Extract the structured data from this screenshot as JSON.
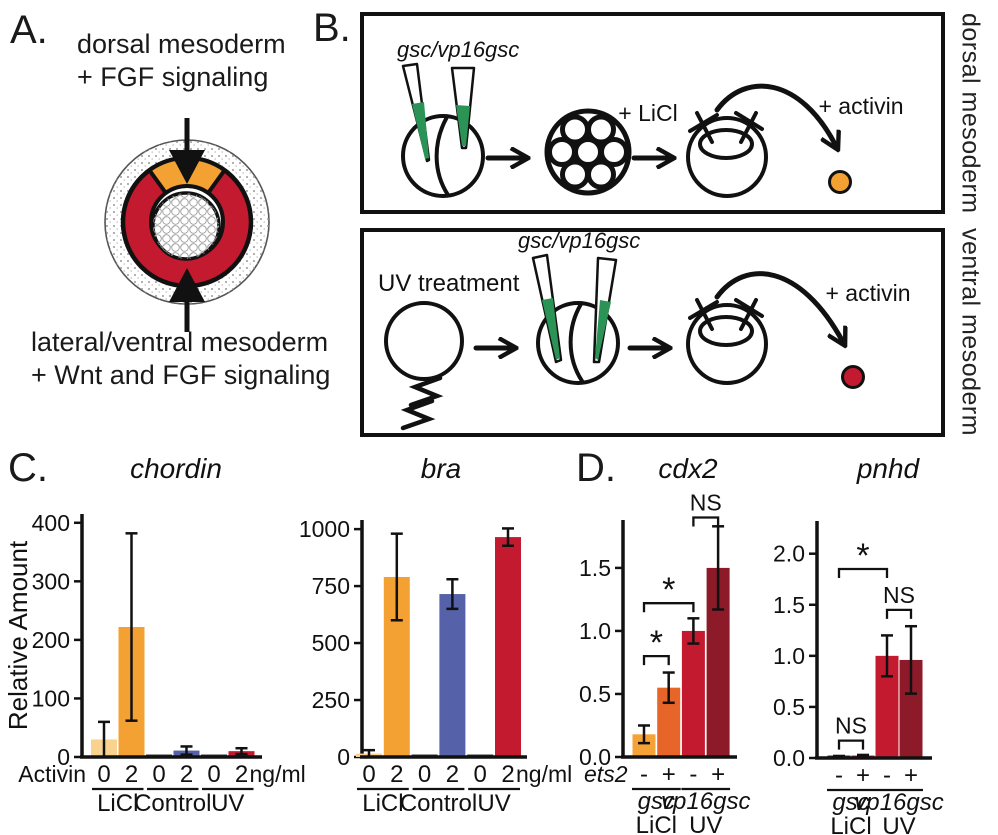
{
  "figure": {
    "panels": {
      "A": {
        "label": "A.",
        "top_caption": [
          "dorsal mesoderm",
          "+ FGF signaling"
        ],
        "bottom_caption": [
          "lateral/ventral mesoderm",
          "+ Wnt and FGF signaling"
        ],
        "colors": {
          "dorsal_wedge": "#F2A132",
          "ventral_ring": "#C41A30"
        }
      },
      "B": {
        "label": "B.",
        "dorsal_row": {
          "injection_label": "gsc/vp16gsc",
          "treatment_label": "+ LiCl",
          "activin_label": "+ activin",
          "side_label": "dorsal mesoderm",
          "explant_color": "#F2A132"
        },
        "ventral_row": {
          "uv_label": "UV treatment",
          "injection_label": "gsc/vp16gsc",
          "activin_label": "+ activin",
          "side_label": "ventral mesoderm",
          "explant_color": "#C41A30"
        },
        "pipette_color": "#2B9355"
      },
      "C": {
        "label": "C."
      },
      "D": {
        "label": "D."
      }
    }
  },
  "chart_data": [
    {
      "type": "bar",
      "title": "chordin",
      "ylabel": "Relative Amount",
      "ylim": [
        0,
        415
      ],
      "y_ticks": [
        0,
        100,
        200,
        300,
        400
      ],
      "y_tick_decimals": 0,
      "x_axis_prefix": "Activin",
      "prefix_italic": false,
      "x_axis_suffix": "ng/ml",
      "x_tick_labels": [
        "0",
        "2",
        "0",
        "2",
        "0",
        "2"
      ],
      "values": [
        30,
        222,
        2,
        11,
        2,
        10
      ],
      "errors": [
        30,
        160,
        0,
        7,
        0,
        5
      ],
      "colors": [
        "#F8D28E",
        "#F2A132",
        "#333333",
        "#5561A8",
        "#333333",
        "#C41A30"
      ],
      "groups": [
        {
          "label": "LiCl",
          "bars": [
            0,
            1
          ]
        },
        {
          "label": "Control",
          "bars": [
            2,
            3
          ]
        },
        {
          "label": "UV",
          "bars": [
            4,
            5
          ]
        }
      ],
      "brackets": []
    },
    {
      "type": "bar",
      "title": "bra",
      "ylabel": "",
      "ylim": [
        0,
        1040
      ],
      "y_ticks": [
        0,
        250,
        500,
        750,
        1000
      ],
      "y_tick_decimals": 0,
      "x_axis_prefix": "",
      "prefix_italic": false,
      "x_axis_suffix": "ng/ml",
      "x_tick_labels": [
        "0",
        "2",
        "0",
        "2",
        "0",
        "2"
      ],
      "values": [
        15,
        790,
        3,
        715,
        3,
        965
      ],
      "errors": [
        15,
        190,
        0,
        65,
        0,
        38
      ],
      "colors": [
        "#F8D28E",
        "#F2A132",
        "#333333",
        "#5561A8",
        "#333333",
        "#C41A30"
      ],
      "groups": [
        {
          "label": "LiCl",
          "bars": [
            0,
            1
          ]
        },
        {
          "label": "Control",
          "bars": [
            2,
            3
          ]
        },
        {
          "label": "UV",
          "bars": [
            4,
            5
          ]
        }
      ],
      "brackets": []
    },
    {
      "type": "bar",
      "title": "cdx2",
      "ylabel": "",
      "ylim": [
        0,
        1.88
      ],
      "y_ticks": [
        0,
        0.5,
        1,
        1.5
      ],
      "y_tick_decimals": 1,
      "x_axis_prefix": "ets2",
      "prefix_italic": true,
      "x_axis_suffix": "",
      "x_tick_labels": [
        "-",
        "+",
        "-",
        "+"
      ],
      "values": [
        0.18,
        0.55,
        1.0,
        1.5
      ],
      "errors": [
        0.07,
        0.12,
        0.1,
        0.33
      ],
      "colors": [
        "#F5A237",
        "#E8652A",
        "#C41A30",
        "#8C1A28"
      ],
      "groups": [
        {
          "label": "gsc",
          "label_italic": true,
          "sublabel": "LiCl",
          "bars": [
            0,
            1
          ]
        },
        {
          "label": "vp16gsc",
          "label_italic": true,
          "sublabel": "UV",
          "bars": [
            2,
            3
          ]
        }
      ],
      "brackets": [
        {
          "from": 0,
          "to": 1,
          "label": "*",
          "y": 0.8
        },
        {
          "from": 0,
          "to": 2,
          "label": "*",
          "y": 1.22
        },
        {
          "from": 2,
          "to": 3,
          "label": "NS",
          "y": 1.9
        }
      ]
    },
    {
      "type": "bar",
      "title": "pnhd",
      "ylabel": "",
      "ylim": [
        0,
        2.32
      ],
      "y_ticks": [
        0,
        0.5,
        1,
        1.5,
        2
      ],
      "y_tick_decimals": 1,
      "x_axis_prefix": "",
      "prefix_italic": false,
      "x_axis_suffix": "",
      "x_tick_labels": [
        "-",
        "+",
        "-",
        "+"
      ],
      "values": [
        0.01,
        0.02,
        1.0,
        0.96
      ],
      "errors": [
        0.01,
        0.01,
        0.2,
        0.33
      ],
      "colors": [
        "#333333",
        "#C42030",
        "#C41A30",
        "#8C1A28"
      ],
      "groups": [
        {
          "label": "gsc",
          "label_italic": true,
          "sublabel": "LiCl",
          "bars": [
            0,
            1
          ]
        },
        {
          "label": "vp16gsc",
          "label_italic": true,
          "sublabel": "UV",
          "bars": [
            2,
            3
          ]
        }
      ],
      "brackets": [
        {
          "from": 0,
          "to": 1,
          "label": "NS",
          "y": 0.17
        },
        {
          "from": 0,
          "to": 2,
          "label": "*",
          "y": 1.85
        },
        {
          "from": 2,
          "to": 3,
          "label": "NS",
          "y": 1.45
        }
      ]
    }
  ]
}
